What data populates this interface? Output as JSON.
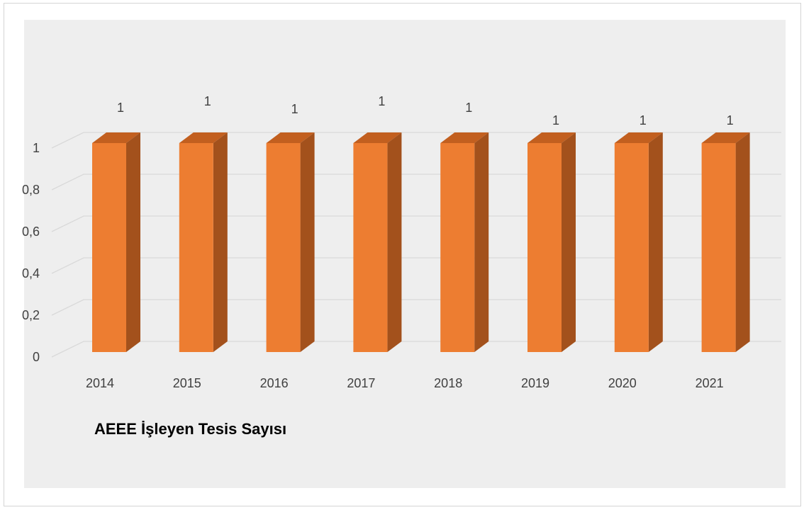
{
  "chart_data": {
    "type": "bar",
    "title": "AEEE İşleyen Tesis Sayısı",
    "categories": [
      "2014",
      "2015",
      "2016",
      "2017",
      "2018",
      "2019",
      "2020",
      "2021"
    ],
    "values": [
      1,
      1,
      1,
      1,
      1,
      1,
      1,
      1
    ],
    "data_labels": [
      "1",
      "1",
      "1",
      "1",
      "1",
      "1",
      "1",
      "1"
    ],
    "ylim": [
      0,
      1
    ],
    "yticks": [
      0,
      0.2,
      0.4,
      0.6,
      0.8,
      1
    ],
    "ytick_labels": [
      "0",
      "0,2",
      "0,4",
      "0,6",
      "0,8",
      "1"
    ],
    "xlabel": "",
    "ylabel": "",
    "grid": true,
    "legend": "none",
    "style": "3d-column",
    "colors": {
      "bar_front": "#ed7d31",
      "bar_side": "#a3511c",
      "bar_top": "#c25f1f",
      "plot_background": "#eeeeee",
      "gridline": "#d9d9d9",
      "text": "#404040"
    }
  }
}
